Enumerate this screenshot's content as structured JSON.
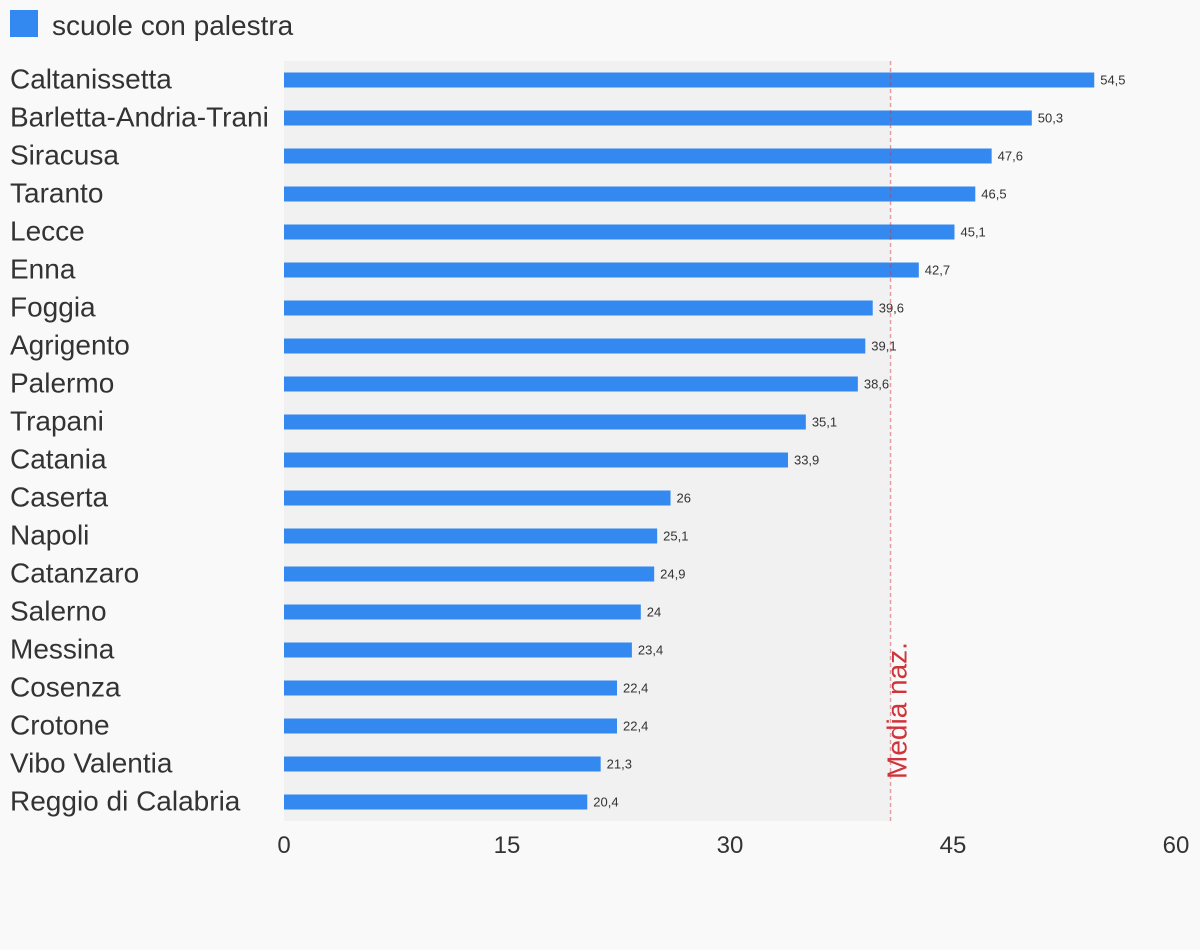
{
  "chart_data": {
    "type": "bar",
    "orientation": "horizontal",
    "legend": "scuole con palestra",
    "categories": [
      "Caltanissetta",
      "Barletta-Andria-Trani",
      "Siracusa",
      "Taranto",
      "Lecce",
      "Enna",
      "Foggia",
      "Agrigento",
      "Palermo",
      "Trapani",
      "Catania",
      "Caserta",
      "Napoli",
      "Catanzaro",
      "Salerno",
      "Messina",
      "Cosenza",
      "Crotone",
      "Vibo Valentia",
      "Reggio di Calabria"
    ],
    "values": [
      54.5,
      50.3,
      47.6,
      46.5,
      45.1,
      42.7,
      39.6,
      39.1,
      38.6,
      35.1,
      33.9,
      26,
      25.1,
      24.9,
      24,
      23.4,
      22.4,
      22.4,
      21.3,
      20.4
    ],
    "value_labels": [
      "54,5",
      "50,3",
      "47,6",
      "46,5",
      "45,1",
      "42,7",
      "39,6",
      "39,1",
      "38,6",
      "35,1",
      "33,9",
      "26",
      "25,1",
      "24,9",
      "24",
      "23,4",
      "22,4",
      "22,4",
      "21,3",
      "20,4"
    ],
    "xlim": [
      0,
      60
    ],
    "xticks": [
      "0",
      "15",
      "30",
      "45",
      "60"
    ],
    "xtick_values": [
      0,
      15,
      30,
      45,
      60
    ],
    "reference_line": {
      "label": "Media naz.",
      "value": 40.8
    },
    "colors": {
      "bar": "#3389ef",
      "reference": "#d0343a",
      "plot_bg": "#f1f1f1",
      "page_bg": "#f9f9f9"
    },
    "grid": false,
    "legend_position": "top-left"
  }
}
